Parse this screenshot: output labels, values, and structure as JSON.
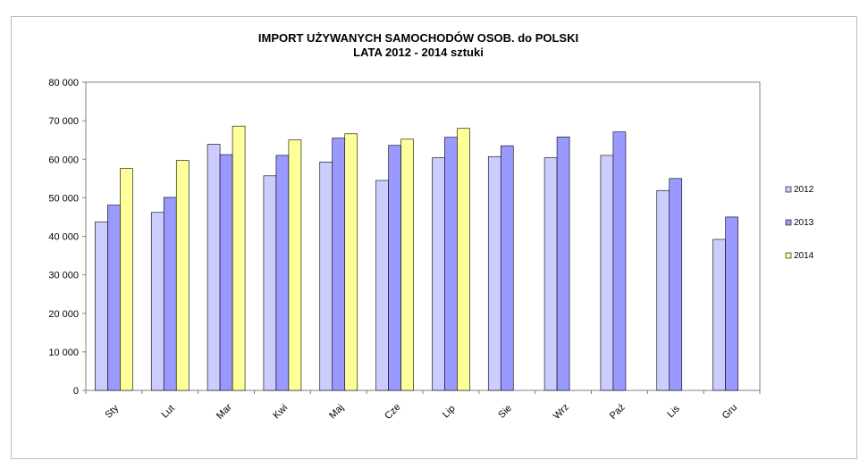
{
  "chart_data": {
    "type": "bar",
    "title": "IMPORT UŻYWANYCH SAMOCHODÓW OSOB. do POLSKI",
    "subtitle": "LATA 2012 - 2014 sztuki",
    "xlabel": "",
    "ylabel": "",
    "ylim": [
      0,
      80000
    ],
    "yticks": [
      0,
      10000,
      20000,
      30000,
      40000,
      50000,
      60000,
      70000,
      80000
    ],
    "ytick_labels": [
      "0",
      "10 000",
      "20 000",
      "30 000",
      "40 000",
      "50 000",
      "60 000",
      "70 000",
      "80 000"
    ],
    "categories": [
      "Sty",
      "Lut",
      "Mar",
      "Kwi",
      "Maj",
      "Cze",
      "Lip",
      "Sie",
      "Wrz",
      "Paź",
      "Lis",
      "Gru"
    ],
    "series": [
      {
        "name": "2012",
        "color": "#ccccff",
        "values": [
          43700,
          46200,
          63900,
          55700,
          59300,
          54500,
          60400,
          60700,
          60400,
          61000,
          51900,
          39200
        ]
      },
      {
        "name": "2013",
        "color": "#9999ff",
        "values": [
          48100,
          50100,
          61200,
          61000,
          65500,
          63600,
          65700,
          63500,
          65800,
          67100,
          55000,
          45000
        ]
      },
      {
        "name": "2014",
        "color": "#ffff99",
        "values": [
          57600,
          59700,
          68600,
          65000,
          66600,
          65200,
          68000,
          null,
          null,
          null,
          null,
          null
        ]
      }
    ],
    "grid": false,
    "legend": "right"
  }
}
